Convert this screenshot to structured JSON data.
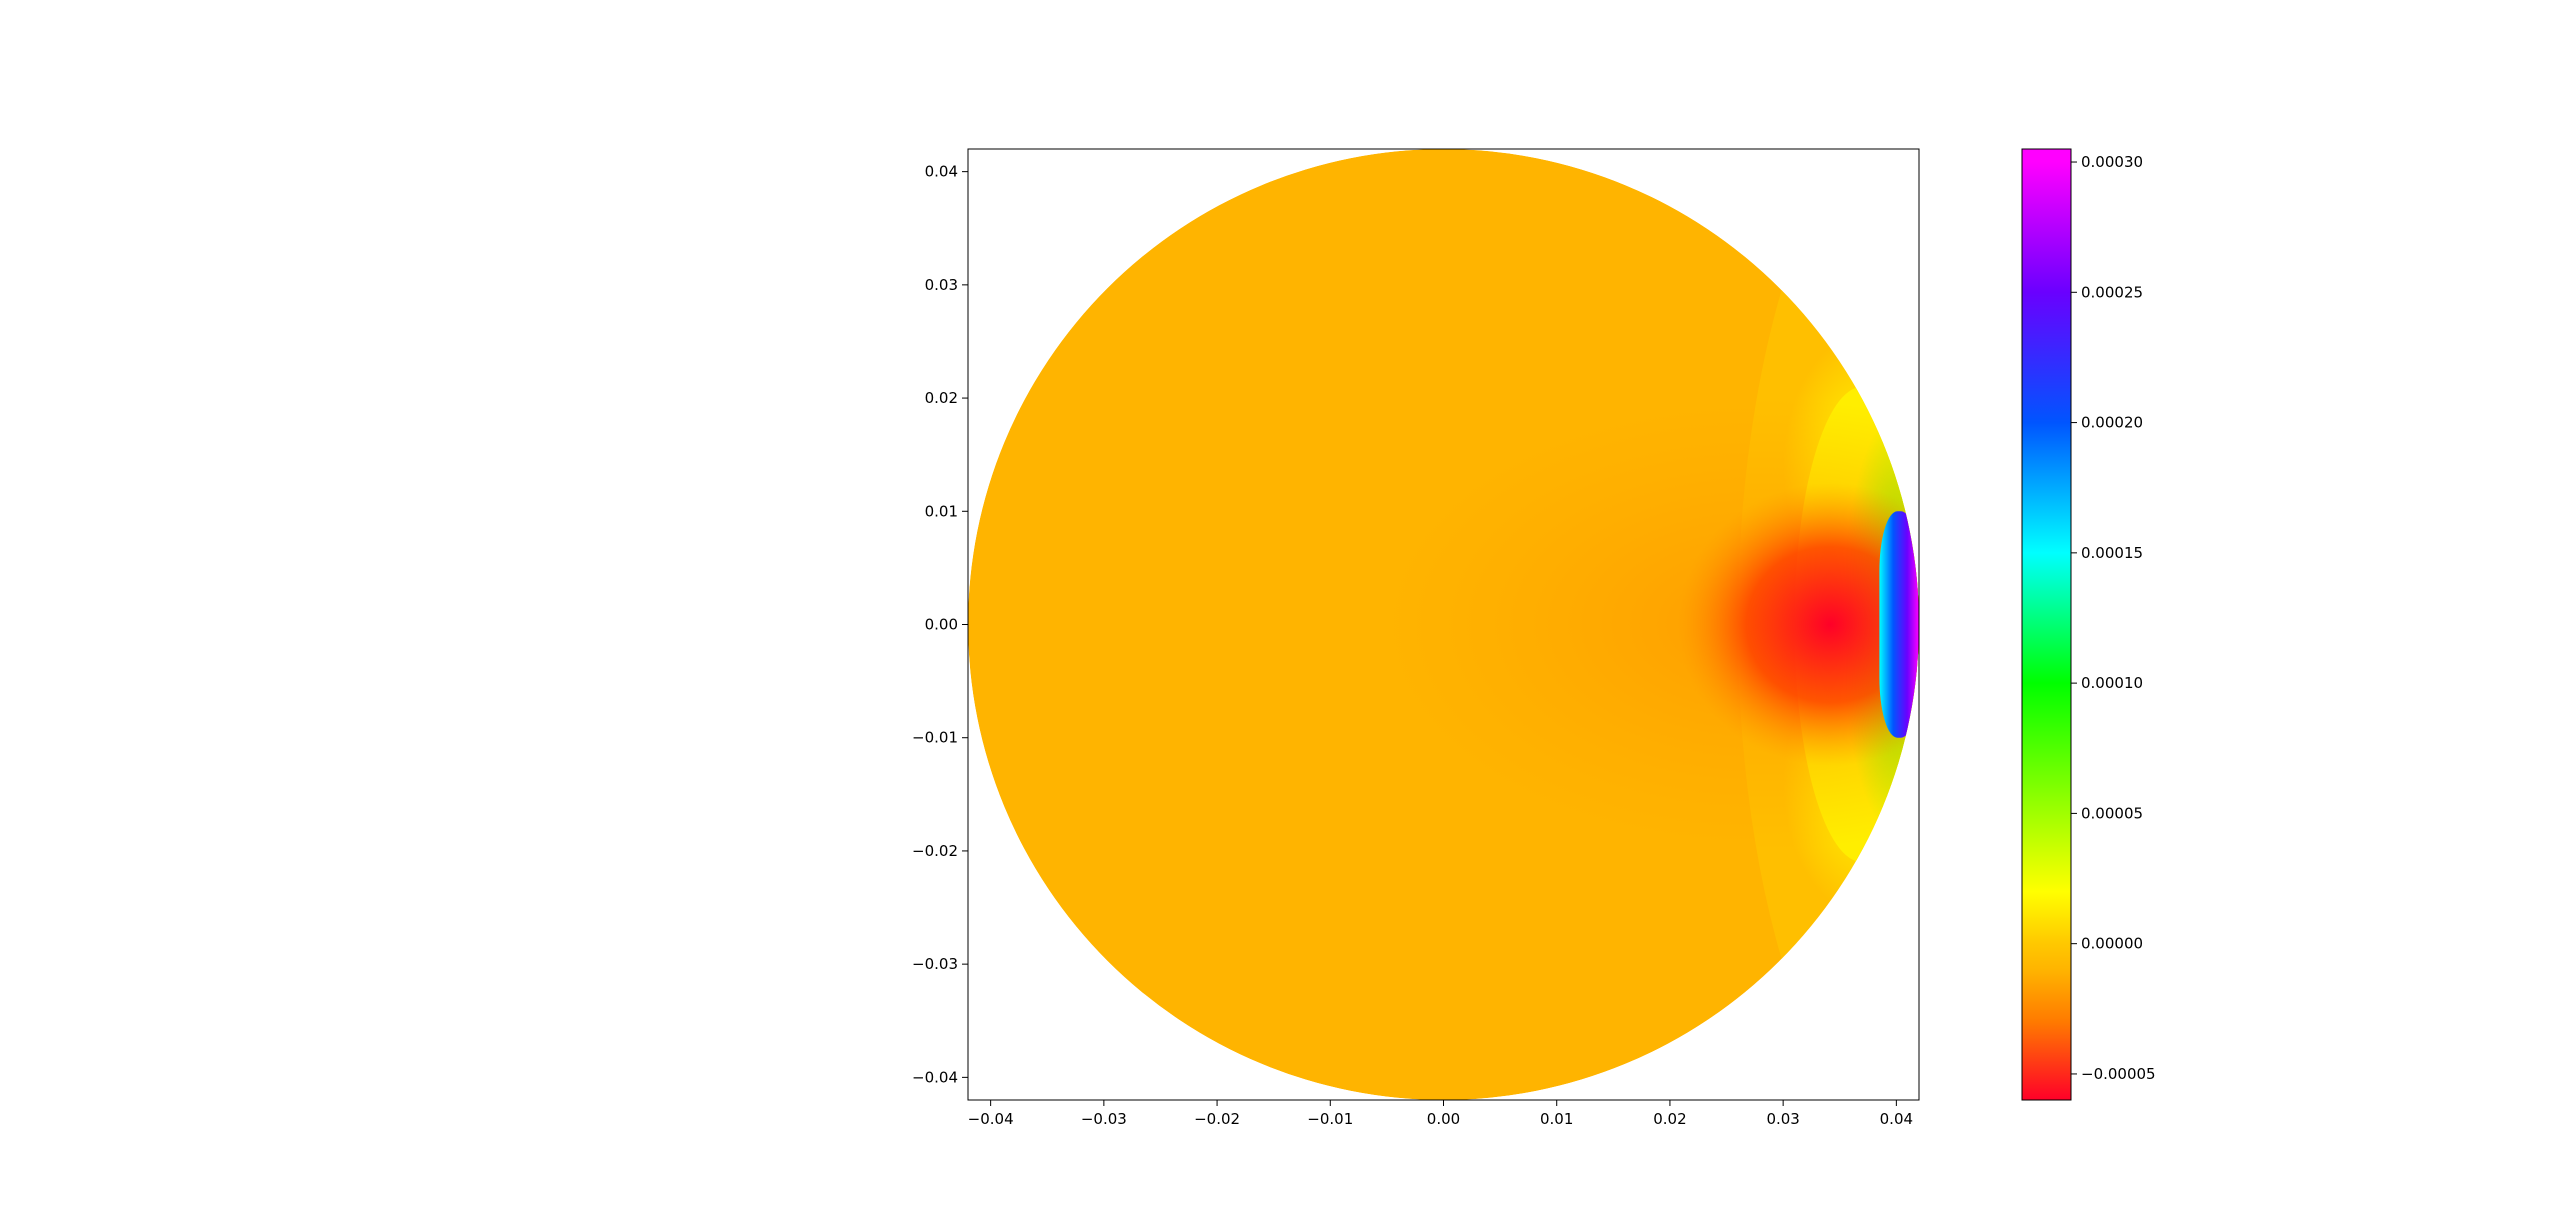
{
  "chart_data": [
    {
      "type": "heatmap",
      "subtype": "filled-contour-on-disk",
      "title": "",
      "xlabel": "",
      "ylabel": "",
      "xlim": [
        -0.042,
        0.042
      ],
      "ylim": [
        -0.042,
        0.042
      ],
      "domain_radius": 0.042,
      "x_ticks": [
        -0.04,
        -0.03,
        -0.02,
        -0.01,
        0.0,
        0.01,
        0.02,
        0.03,
        0.04
      ],
      "x_tick_labels": [
        "−0.04",
        "−0.03",
        "−0.02",
        "−0.01",
        "0.00",
        "0.01",
        "0.02",
        "0.03",
        "0.04"
      ],
      "y_ticks": [
        0.04,
        0.03,
        0.02,
        0.01,
        0.0,
        -0.01,
        -0.02,
        -0.03,
        -0.04
      ],
      "y_tick_labels": [
        "0.04",
        "0.03",
        "0.02",
        "0.01",
        "0.00",
        "−0.01",
        "−0.02",
        "−0.03",
        "−0.04"
      ],
      "grid": false,
      "field_features": [
        {
          "feature": "background",
          "value": -1e-05
        },
        {
          "feature": "minimum",
          "x": 0.034,
          "y": 0.0,
          "value": -6e-05
        },
        {
          "feature": "maximum",
          "x": 0.042,
          "y": 0.0,
          "value": 0.0003
        }
      ]
    },
    {
      "type": "colorbar",
      "colormap": "gist_rainbow",
      "range": [
        -6e-05,
        0.000305
      ],
      "ticks": [
        -5e-05,
        0.0,
        5e-05,
        0.0001,
        0.00015,
        0.0002,
        0.00025,
        0.0003
      ],
      "tick_labels": [
        "−0.00005",
        "0.00000",
        "0.00005",
        "0.00010",
        "0.00015",
        "0.00020",
        "0.00025",
        "0.00030"
      ],
      "colors": [
        {
          "value": -6e-05,
          "color": "#ff0028"
        },
        {
          "value": -3e-05,
          "color": "#ff7a00"
        },
        {
          "value": -1e-05,
          "color": "#ffb400"
        },
        {
          "value": 0.0,
          "color": "#ffc800"
        },
        {
          "value": 2e-05,
          "color": "#ffff00"
        },
        {
          "value": 5e-05,
          "color": "#a0ff00"
        },
        {
          "value": 0.0001,
          "color": "#00ff00"
        },
        {
          "value": 0.00015,
          "color": "#00ffff"
        },
        {
          "value": 0.0002,
          "color": "#0055ff"
        },
        {
          "value": 0.00025,
          "color": "#6a00ff"
        },
        {
          "value": 0.0003,
          "color": "#ff00ff"
        }
      ]
    }
  ]
}
